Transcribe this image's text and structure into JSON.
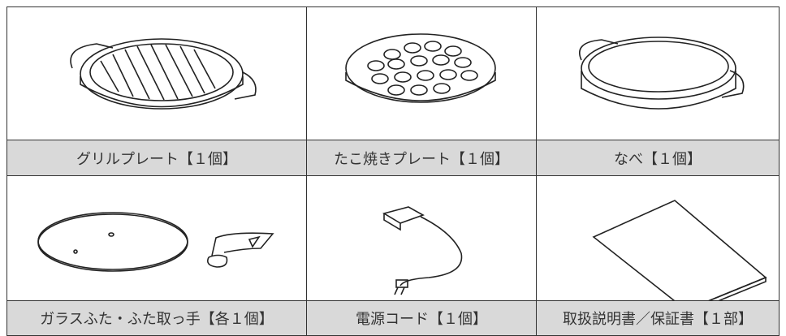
{
  "items": [
    {
      "label": "グリルプレート【１個】"
    },
    {
      "label": "たこ焼きプレート【１個】"
    },
    {
      "label": "なべ【１個】"
    },
    {
      "label": "ガラスふた・ふた取っ手【各１個】"
    },
    {
      "label": "電源コード【１個】"
    },
    {
      "label": "取扱説明書／保証書【１部】"
    }
  ]
}
